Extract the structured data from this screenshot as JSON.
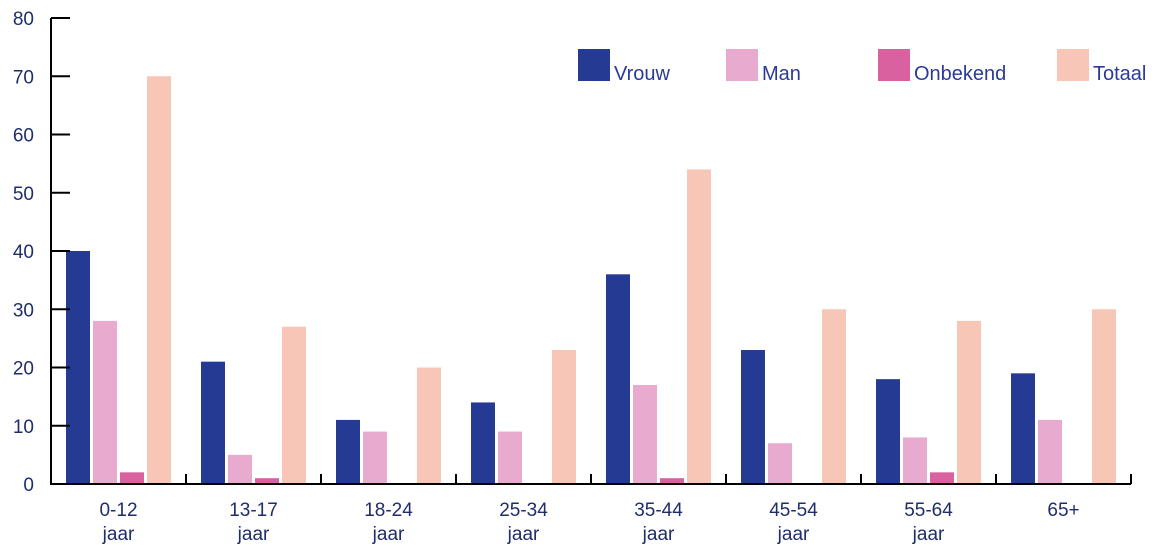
{
  "chart_data": {
    "type": "bar",
    "categories": [
      [
        "0-12",
        "jaar"
      ],
      [
        "13-17",
        "jaar"
      ],
      [
        "18-24",
        "jaar"
      ],
      [
        "25-34",
        "jaar"
      ],
      [
        "35-44",
        "jaar"
      ],
      [
        "45-54",
        "jaar"
      ],
      [
        "55-64",
        "jaar"
      ],
      [
        "65+"
      ]
    ],
    "series": [
      {
        "name": "Vrouw",
        "color": "#253a93",
        "values": [
          40,
          21,
          11,
          14,
          36,
          23,
          18,
          19
        ]
      },
      {
        "name": "Man",
        "color": "#e8aace",
        "values": [
          28,
          5,
          9,
          9,
          17,
          7,
          8,
          11
        ]
      },
      {
        "name": "Onbekend",
        "color": "#d9619f",
        "values": [
          2,
          1,
          0,
          0,
          1,
          0,
          2,
          0
        ]
      },
      {
        "name": "Totaal",
        "color": "#f8c6b6",
        "values": [
          70,
          27,
          20,
          23,
          54,
          30,
          28,
          30
        ]
      }
    ],
    "ylim": [
      0,
      80
    ],
    "yticks": [
      0,
      10,
      20,
      30,
      40,
      50,
      60,
      70,
      80
    ],
    "grid": false,
    "legend_position": "top-right"
  }
}
